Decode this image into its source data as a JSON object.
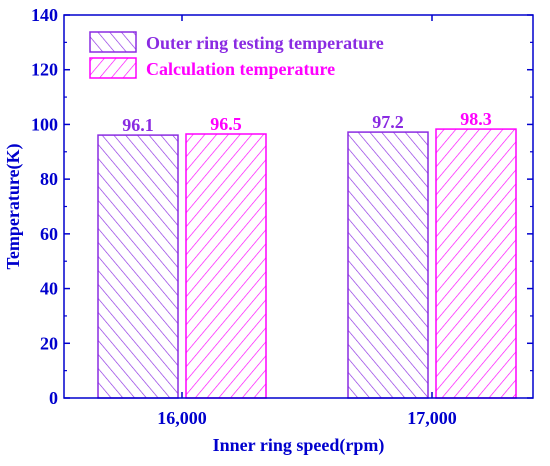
{
  "chart_data": {
    "type": "bar",
    "title": "",
    "xlabel": "Inner ring speed(rpm)",
    "ylabel": "Temperature(K)",
    "ylim": [
      0,
      140
    ],
    "yticks": [
      0,
      20,
      40,
      60,
      80,
      100,
      120,
      140
    ],
    "categories": [
      "16,000",
      "17,000"
    ],
    "series": [
      {
        "name": "Outer ring testing temperature",
        "values": [
          96.1,
          97.2
        ],
        "value_labels": [
          "96.1",
          "97.2"
        ],
        "color": "#8A2BE2",
        "hatch": "forward-diagonal"
      },
      {
        "name": "Calculation temperature",
        "values": [
          96.5,
          98.3
        ],
        "value_labels": [
          "96.5",
          "98.3"
        ],
        "color": "#FF00FF",
        "hatch": "back-diagonal"
      }
    ],
    "legend": "top-left",
    "grid": false,
    "axis_color": "#0000CD"
  }
}
